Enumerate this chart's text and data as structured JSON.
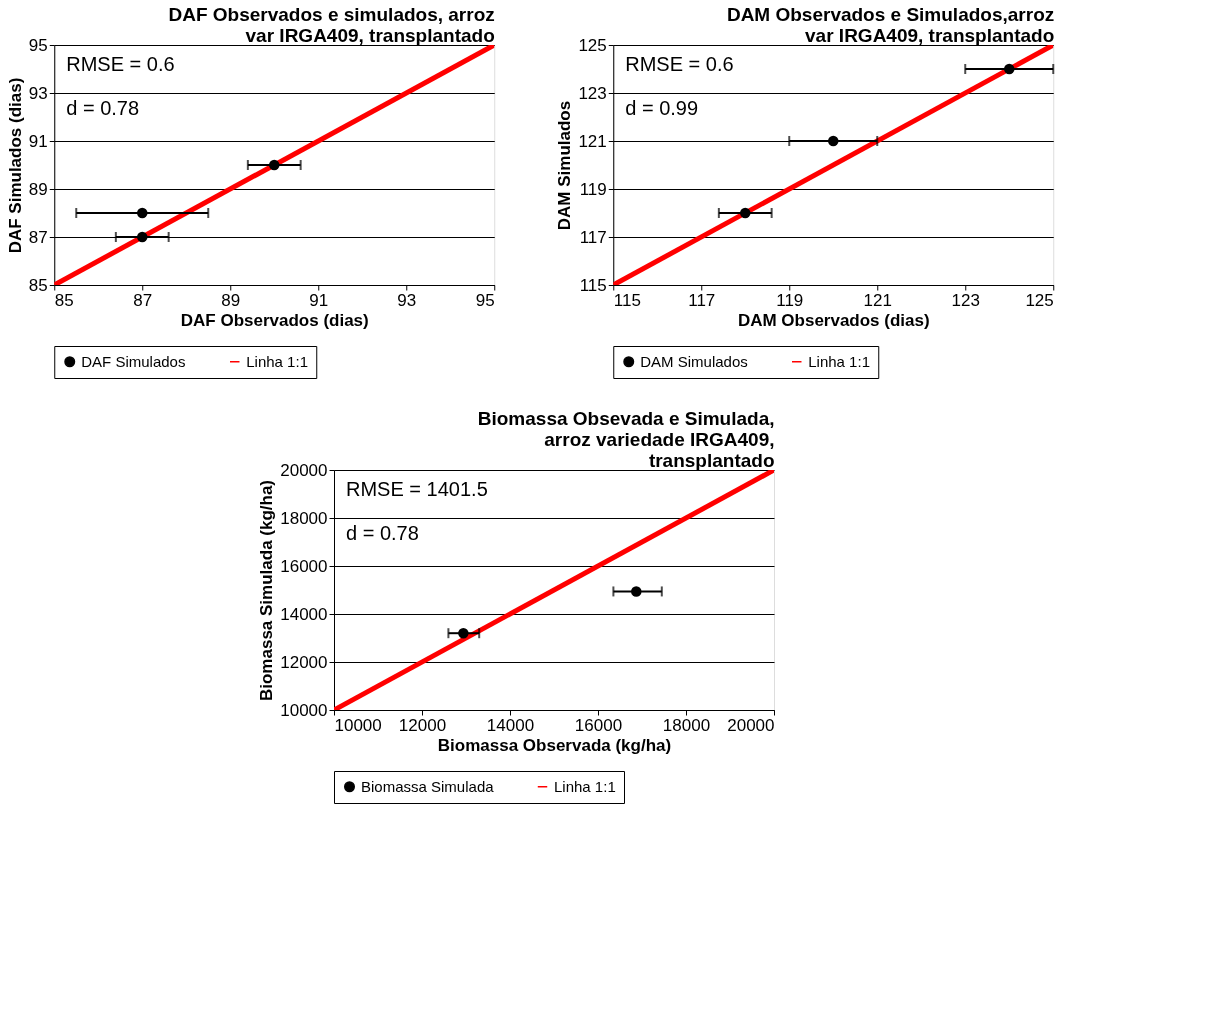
{
  "chart_data": [
    {
      "type": "scatter",
      "title": "DAF Observados e simulados, arroz var IRGA409, transplantado",
      "xlabel": "DAF Observados (dias)",
      "ylabel": "DAF Simulados (dias)",
      "xlim": [
        85,
        95
      ],
      "ylim": [
        85,
        95
      ],
      "xticks": [
        85,
        87,
        89,
        91,
        93,
        95
      ],
      "yticks": [
        85,
        87,
        89,
        91,
        93,
        95
      ],
      "grid": "y",
      "legend": "bottom",
      "annotations": [
        "RMSE = 0.6",
        "d = 0.78"
      ],
      "series": [
        {
          "name": "DAF Simulados",
          "marker": "circle",
          "color": "#000000",
          "x": [
            87,
            87,
            90
          ],
          "values": [
            87,
            88,
            90
          ],
          "xerrors": [
            [
              86.4,
              87.6
            ],
            [
              85.5,
              88.5
            ],
            [
              89.4,
              90.6
            ]
          ]
        },
        {
          "name": "Linha 1:1",
          "type": "line",
          "color": "#ff0000",
          "x": [
            85,
            95
          ],
          "values": [
            85,
            95
          ]
        }
      ]
    },
    {
      "type": "scatter",
      "title": "DAM Observados e Simulados,arroz var IRGA409, transplantado",
      "xlabel": "DAM Observados (dias)",
      "ylabel": "DAM Simulados",
      "xlim": [
        115,
        125
      ],
      "ylim": [
        115,
        125
      ],
      "xticks": [
        115,
        117,
        119,
        121,
        123,
        125
      ],
      "yticks": [
        115,
        117,
        119,
        121,
        123,
        125
      ],
      "grid": "y",
      "legend": "bottom",
      "annotations": [
        "RMSE = 0.6",
        "d = 0.99"
      ],
      "series": [
        {
          "name": "DAM Simulados",
          "marker": "circle",
          "color": "#000000",
          "x": [
            118,
            120,
            124
          ],
          "values": [
            118,
            121,
            124
          ],
          "xerrors": [
            [
              117.4,
              118.6
            ],
            [
              119,
              121
            ],
            [
              123,
              125
            ]
          ]
        },
        {
          "name": "Linha 1:1",
          "type": "line",
          "color": "#ff0000",
          "x": [
            115,
            125
          ],
          "values": [
            115,
            125
          ]
        }
      ]
    },
    {
      "type": "scatter",
      "title": "Biomassa Obsevada e Simulada, arroz variedade IRGA409, transplantado",
      "xlabel": "Biomassa Observada (kg/ha)",
      "ylabel": "Biomassa Simulada (kg/ha)",
      "xlim": [
        10000,
        20000
      ],
      "ylim": [
        10000,
        20000
      ],
      "xticks": [
        10000,
        12000,
        14000,
        16000,
        18000,
        20000
      ],
      "yticks": [
        10000,
        12000,
        14000,
        16000,
        18000,
        20000
      ],
      "grid": "y",
      "legend": "bottom",
      "annotations": [
        "RMSE =  1401.5",
        "d = 0.78"
      ],
      "series": [
        {
          "name": "Biomassa Simulada",
          "marker": "circle",
          "color": "#000000",
          "x": [
            12940,
            16870
          ],
          "values": [
            13200,
            14940
          ],
          "xerrors": [
            [
              12600,
              13300
            ],
            [
              16350,
              17450
            ]
          ]
        },
        {
          "name": "Linha 1:1",
          "type": "line",
          "color": "#ff0000",
          "x": [
            10000,
            20000
          ],
          "values": [
            10000,
            20000
          ]
        }
      ]
    }
  ]
}
